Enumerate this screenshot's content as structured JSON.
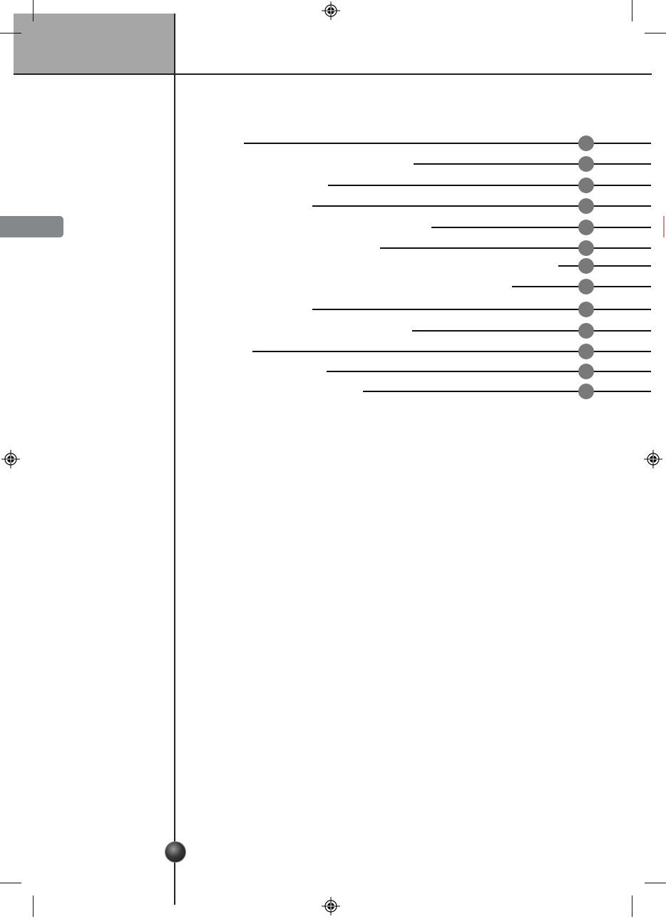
{
  "colors": {
    "header_block": "#a7a6a7",
    "side_tab": "#85888b",
    "toc_dot": "#7a797a",
    "rule": "#222222"
  },
  "icons": {
    "registration_mark": "registration-mark-icon",
    "page_number_ball": "page-ball-icon"
  },
  "toc": {
    "entry_count": 13
  }
}
